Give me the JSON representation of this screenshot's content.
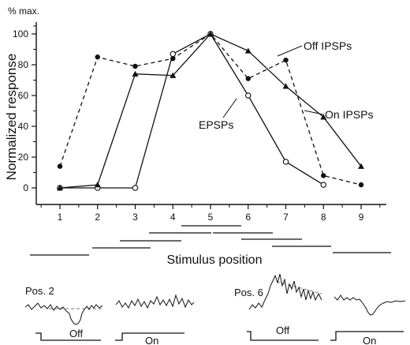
{
  "chart_data": {
    "type": "line",
    "ylabel": "Normalized response",
    "yunit": "% max.",
    "xlabel": "Stimulus position",
    "ylim": [
      0,
      100
    ],
    "y_ticks": [
      0,
      20,
      40,
      60,
      80,
      100
    ],
    "xlim": [
      0.5,
      10.5
    ],
    "x_ticks": [
      1,
      2,
      3,
      4,
      5,
      6,
      7,
      8,
      9
    ],
    "grid": false,
    "series": [
      {
        "name": "Off IPSPs",
        "line": "dashed",
        "marker": "filled-circle",
        "x": [
          1,
          2,
          3,
          4,
          5,
          6,
          7,
          8,
          9
        ],
        "y": [
          14,
          85,
          79,
          84,
          100,
          71,
          83,
          8,
          2
        ]
      },
      {
        "name": "EPSPs",
        "line": "solid",
        "marker": "open-circle",
        "x": [
          1,
          2,
          3,
          4,
          5,
          6,
          7,
          8
        ],
        "y": [
          0,
          0,
          0,
          87,
          100,
          60,
          17,
          2
        ]
      },
      {
        "name": "On IPSPs",
        "line": "solid",
        "marker": "filled-triangle",
        "x": [
          1,
          2,
          3,
          4,
          5,
          6,
          7,
          8,
          9
        ],
        "y": [
          0,
          2,
          74,
          73,
          100,
          89,
          66,
          46,
          14
        ]
      }
    ]
  },
  "traces": [
    {
      "label": "Pos. 2",
      "off_label": "Off",
      "on_label": "On"
    },
    {
      "label": "Pos. 6",
      "off_label": "Off",
      "on_label": "On"
    }
  ]
}
